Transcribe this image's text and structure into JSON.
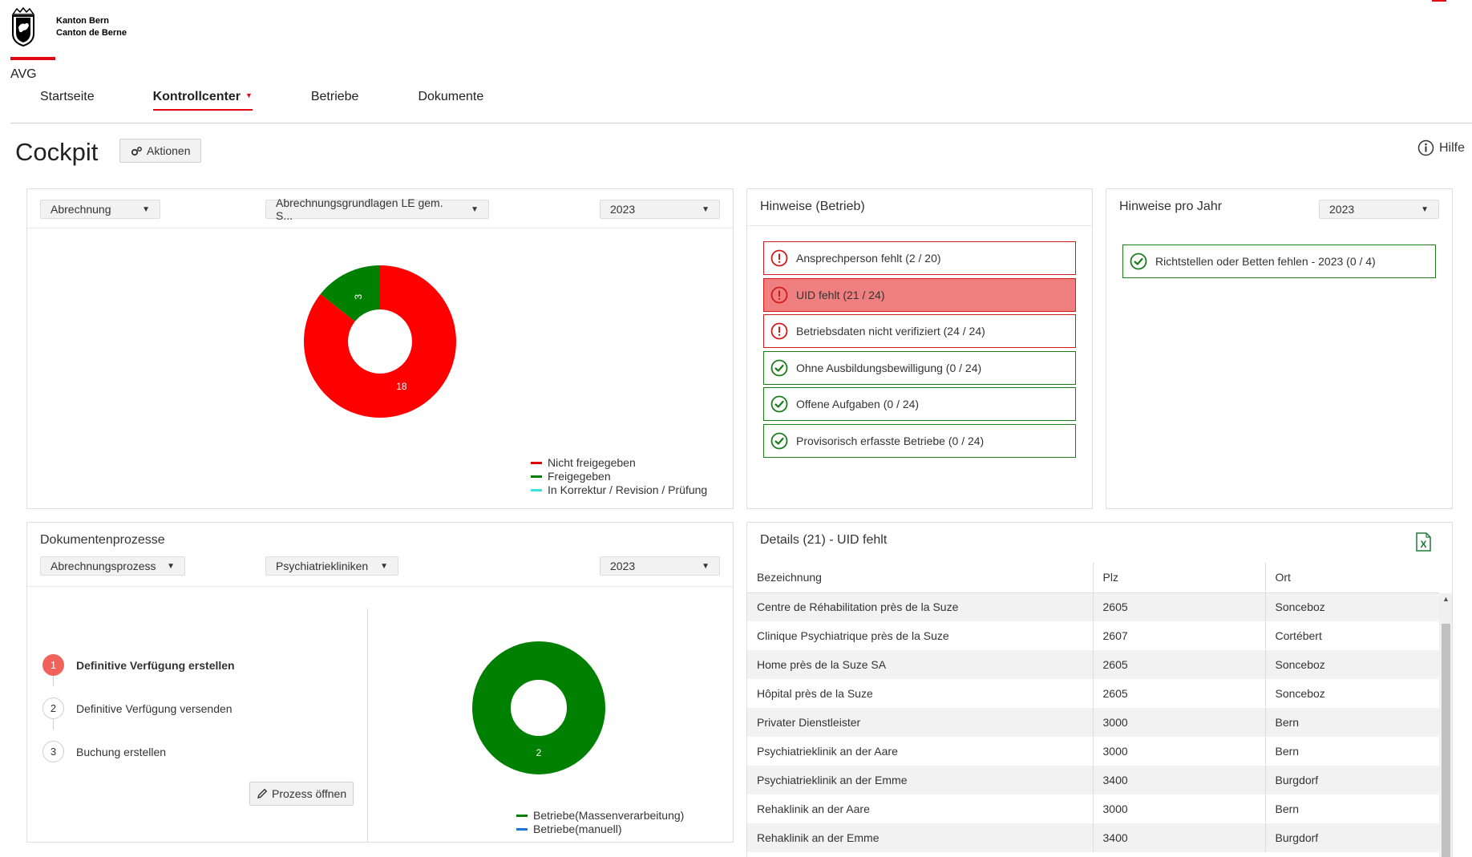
{
  "header": {
    "logo_line1": "Kanton Bern",
    "logo_line2": "Canton de Berne",
    "app_name": "AVG",
    "brand_color": "#e30613"
  },
  "nav": {
    "items": [
      {
        "label": "Startseite"
      },
      {
        "label": "Kontrollcenter"
      },
      {
        "label": "Betriebe"
      },
      {
        "label": "Dokumente"
      }
    ],
    "active": "Kontrollcenter"
  },
  "page": {
    "title": "Cockpit",
    "aktionen_label": "Aktionen",
    "hilfe_label": "Hilfe"
  },
  "abrechnung_card": {
    "select1": "Abrechnung",
    "select2": "Abrechnungsgrundlagen LE gem. S...",
    "select3": "2023",
    "legend": [
      {
        "label": "Nicht freigegeben",
        "color": "#e00000"
      },
      {
        "label": "Freigegeben",
        "color": "#008000"
      },
      {
        "label": "In Korrektur / Revision / Prüfung",
        "color": "#40e0e0"
      }
    ]
  },
  "hinweise_betrieb": {
    "title": "Hinweise (Betrieb)",
    "items": [
      {
        "label": "Ansprechperson fehlt (2 / 20)",
        "status": "error",
        "icon": "exclamation-circle-icon"
      },
      {
        "label": "UID fehlt (21 / 24)",
        "status": "error-selected",
        "icon": "exclamation-circle-icon"
      },
      {
        "label": "Betriebsdaten nicht verifiziert (24 / 24)",
        "status": "error",
        "icon": "exclamation-circle-icon"
      },
      {
        "label": "Ohne Ausbildungsbewilligung (0 / 24)",
        "status": "ok",
        "icon": "check-circle-icon"
      },
      {
        "label": "Offene Aufgaben (0 / 24)",
        "status": "ok",
        "icon": "check-circle-icon"
      },
      {
        "label": "Provisorisch erfasste Betriebe (0 / 24)",
        "status": "ok",
        "icon": "check-circle-icon"
      }
    ]
  },
  "hinweise_jahr": {
    "title": "Hinweise pro Jahr",
    "year": "2023",
    "items": [
      {
        "label": "Richtstellen oder Betten fehlen - 2023 (0 / 4)",
        "status": "ok",
        "icon": "check-circle-icon"
      }
    ]
  },
  "dokumentenprozesse": {
    "title": "Dokumentenprozesse",
    "select1": "Abrechnungsprozess",
    "select2": "Psychiatriekliniken",
    "select3": "2023",
    "steps": [
      {
        "num": "1",
        "label": "Definitive Verfügung erstellen",
        "active": true
      },
      {
        "num": "2",
        "label": "Definitive Verfügung versenden",
        "active": false
      },
      {
        "num": "3",
        "label": "Buchung erstellen",
        "active": false
      }
    ],
    "prozess_button": "Prozess öffnen",
    "legend": [
      {
        "label": "Betriebe(Massenverarbeitung)",
        "color": "#008000"
      },
      {
        "label": "Betriebe(manuell)",
        "color": "#1e78d2"
      }
    ]
  },
  "details": {
    "title": "Details (21) - UID fehlt",
    "columns": [
      "Bezeichnung",
      "Plz",
      "Ort"
    ],
    "rows": [
      [
        "Centre de Réhabilitation près de la Suze",
        "2605",
        "Sonceboz"
      ],
      [
        "Clinique Psychiatrique près de la Suze",
        "2607",
        "Cortébert"
      ],
      [
        "Home près de la Suze SA",
        "2605",
        "Sonceboz"
      ],
      [
        "Hôpital près de la Suze",
        "2605",
        "Sonceboz"
      ],
      [
        "Privater Dienstleister",
        "3000",
        "Bern"
      ],
      [
        "Psychiatrieklinik an der Aare",
        "3000",
        "Bern"
      ],
      [
        "Psychiatrieklinik an der Emme",
        "3400",
        "Burgdorf"
      ],
      [
        "Rehaklinik an der Aare",
        "3000",
        "Bern"
      ],
      [
        "Rehaklinik an der Emme",
        "3400",
        "Burgdorf"
      ]
    ]
  },
  "chart_data": [
    {
      "type": "pie",
      "donut": true,
      "categories": [
        "Nicht freigegeben",
        "Freigegeben",
        "In Korrektur / Revision / Prüfung"
      ],
      "values": [
        18,
        3,
        0
      ],
      "colors": [
        "#ff0000",
        "#008000",
        "#40e0e0"
      ]
    },
    {
      "type": "pie",
      "donut": true,
      "categories": [
        "Betriebe(Massenverarbeitung)",
        "Betriebe(manuell)"
      ],
      "values": [
        2,
        0
      ],
      "colors": [
        "#008000",
        "#1e78d2"
      ]
    }
  ]
}
